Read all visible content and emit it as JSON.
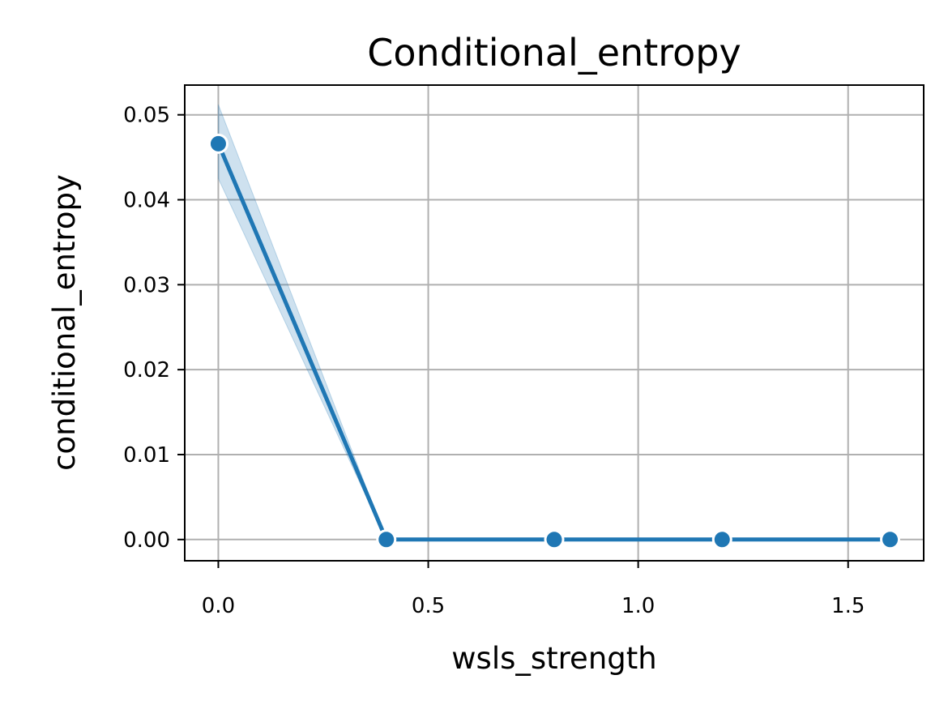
{
  "chart_data": {
    "type": "line",
    "title": "Conditional_entropy",
    "xlabel": "wsls_strength",
    "ylabel": "conditional_entropy",
    "x": [
      0.0,
      0.4,
      0.8,
      1.2,
      1.6
    ],
    "series": [
      {
        "values": [
          0.0466,
          0.0,
          0.0,
          0.0,
          0.0
        ],
        "ci_lower": [
          0.0425,
          0.0,
          0.0,
          0.0,
          0.0
        ],
        "ci_upper": [
          0.0512,
          0.0,
          0.0,
          0.0,
          0.0
        ],
        "color": "#1f77b4",
        "band_color": "#1f77b4",
        "marker": "circle"
      }
    ],
    "xlim": [
      -0.08,
      1.68
    ],
    "ylim": [
      -0.0025,
      0.0535
    ],
    "xticks": [
      0.0,
      0.5,
      1.0,
      1.5
    ],
    "xtick_labels": [
      "0.0",
      "0.5",
      "1.0",
      "1.5"
    ],
    "yticks": [
      0.0,
      0.01,
      0.02,
      0.03,
      0.04,
      0.05
    ],
    "ytick_labels": [
      "0.00",
      "0.01",
      "0.02",
      "0.03",
      "0.04",
      "0.05"
    ],
    "grid": true,
    "legend": false
  }
}
